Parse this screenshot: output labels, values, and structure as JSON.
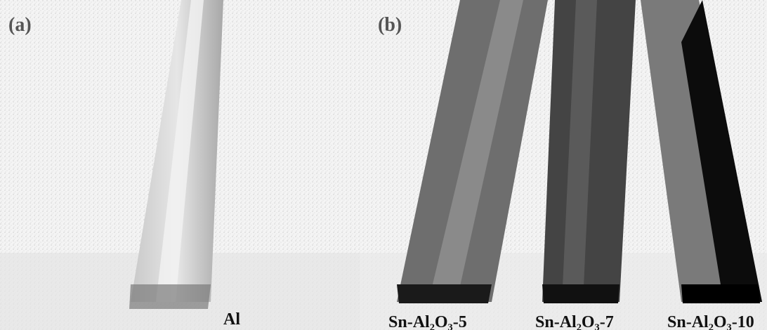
{
  "panels": [
    {
      "tag": "(a)",
      "labels": [
        "Al"
      ]
    },
    {
      "tag": "(b)",
      "labels": [
        "Sn-Al₂O₃-5",
        "Sn-Al₂O₃-7",
        "Sn-Al₂O₃-10"
      ]
    }
  ]
}
